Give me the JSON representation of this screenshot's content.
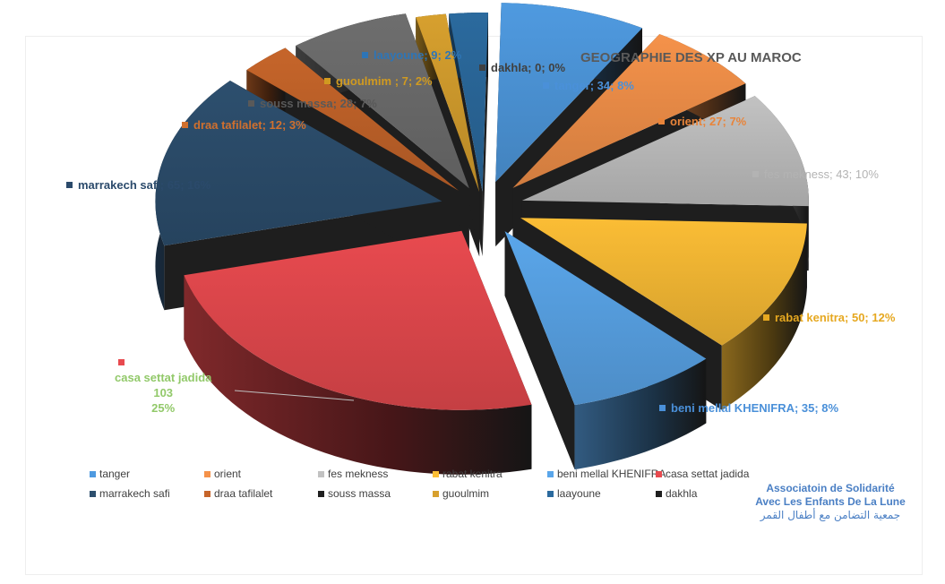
{
  "chart_data": {
    "type": "pie",
    "variant": "exploded 3D pie",
    "title": "GEOGRAPHIE DES XP AU MAROC",
    "legend_position": "bottom",
    "slices": [
      {
        "name": "tanger",
        "value": 34,
        "percent": "8%",
        "label": "tanger; 34; 8%",
        "color": "#4f9ae0",
        "label_color": "#4a90d9"
      },
      {
        "name": "orient",
        "value": 27,
        "percent": "7%",
        "label": "orient; 27; 7%",
        "color": "#f5924a",
        "label_color": "#e8843a"
      },
      {
        "name": "fes mekness",
        "value": 43,
        "percent": "10%",
        "label": "fes mekness; 43; 10%",
        "color": "#c2c2c2",
        "label_color": "#b3b3b3"
      },
      {
        "name": "rabat kenitra",
        "value": 50,
        "percent": "12%",
        "label": "rabat kenitra; 50; 12%",
        "color": "#fbbd35",
        "label_color": "#e6a820"
      },
      {
        "name": "beni mellal KHENIFRA",
        "value": 35,
        "percent": "8%",
        "label": "beni mellal KHENIFRA; 35; 8%",
        "color": "#5aa6ea",
        "label_color": "#4a90d9"
      },
      {
        "name": "casa settat jadida",
        "value": 103,
        "percent": "25%",
        "label_lines": [
          "casa settat jadida",
          "103",
          "25%"
        ],
        "color": "#e84a4f",
        "label_color": "#92c96a"
      },
      {
        "name": "marrakech safi",
        "value": 65,
        "percent": "16%",
        "label": "marrakech safi; 65; 16%",
        "color": "#2d4f6e",
        "label_color": "#2b4a6b"
      },
      {
        "name": "draa tafilalet",
        "value": 12,
        "percent": "3%",
        "label": "draa tafilalet; 12; 3%",
        "color": "#c6652a",
        "label_color": "#d0702e"
      },
      {
        "name": "souss massa",
        "value": 28,
        "percent": "7%",
        "label": "souss massa; 28; 7%",
        "color": "#6e6e6e",
        "label_color": "#595959"
      },
      {
        "name": "guoulmim",
        "value": 7,
        "percent": "2%",
        "label": "guoulmim ; 7; 2%",
        "color": "#d7a02e",
        "label_color": "#d09a20"
      },
      {
        "name": "laayoune",
        "value": 9,
        "percent": "2%",
        "label": "laayoune; 9; 2%",
        "color": "#2b6a9e",
        "label_color": "#2e75b6"
      },
      {
        "name": "dakhla",
        "value": 0,
        "percent": "0%",
        "label": "dakhla; 0; 0%",
        "color": "#1f1f1f",
        "label_color": "#404040"
      }
    ],
    "legend": [
      "tanger",
      "orient",
      "fes mekness",
      "rabat kenitra",
      "beni mellal KHENIFRA",
      "casa settat jadida",
      "marrakech safi",
      "draa tafilalet",
      "souss massa",
      "guoulmim",
      "laayoune",
      "dakhla"
    ]
  },
  "association": {
    "line1": "Associatoin de Solidarité",
    "line2": "Avec Les Enfants De La Lune",
    "line3": "جمعية التضامن مع أطفال القمر"
  }
}
